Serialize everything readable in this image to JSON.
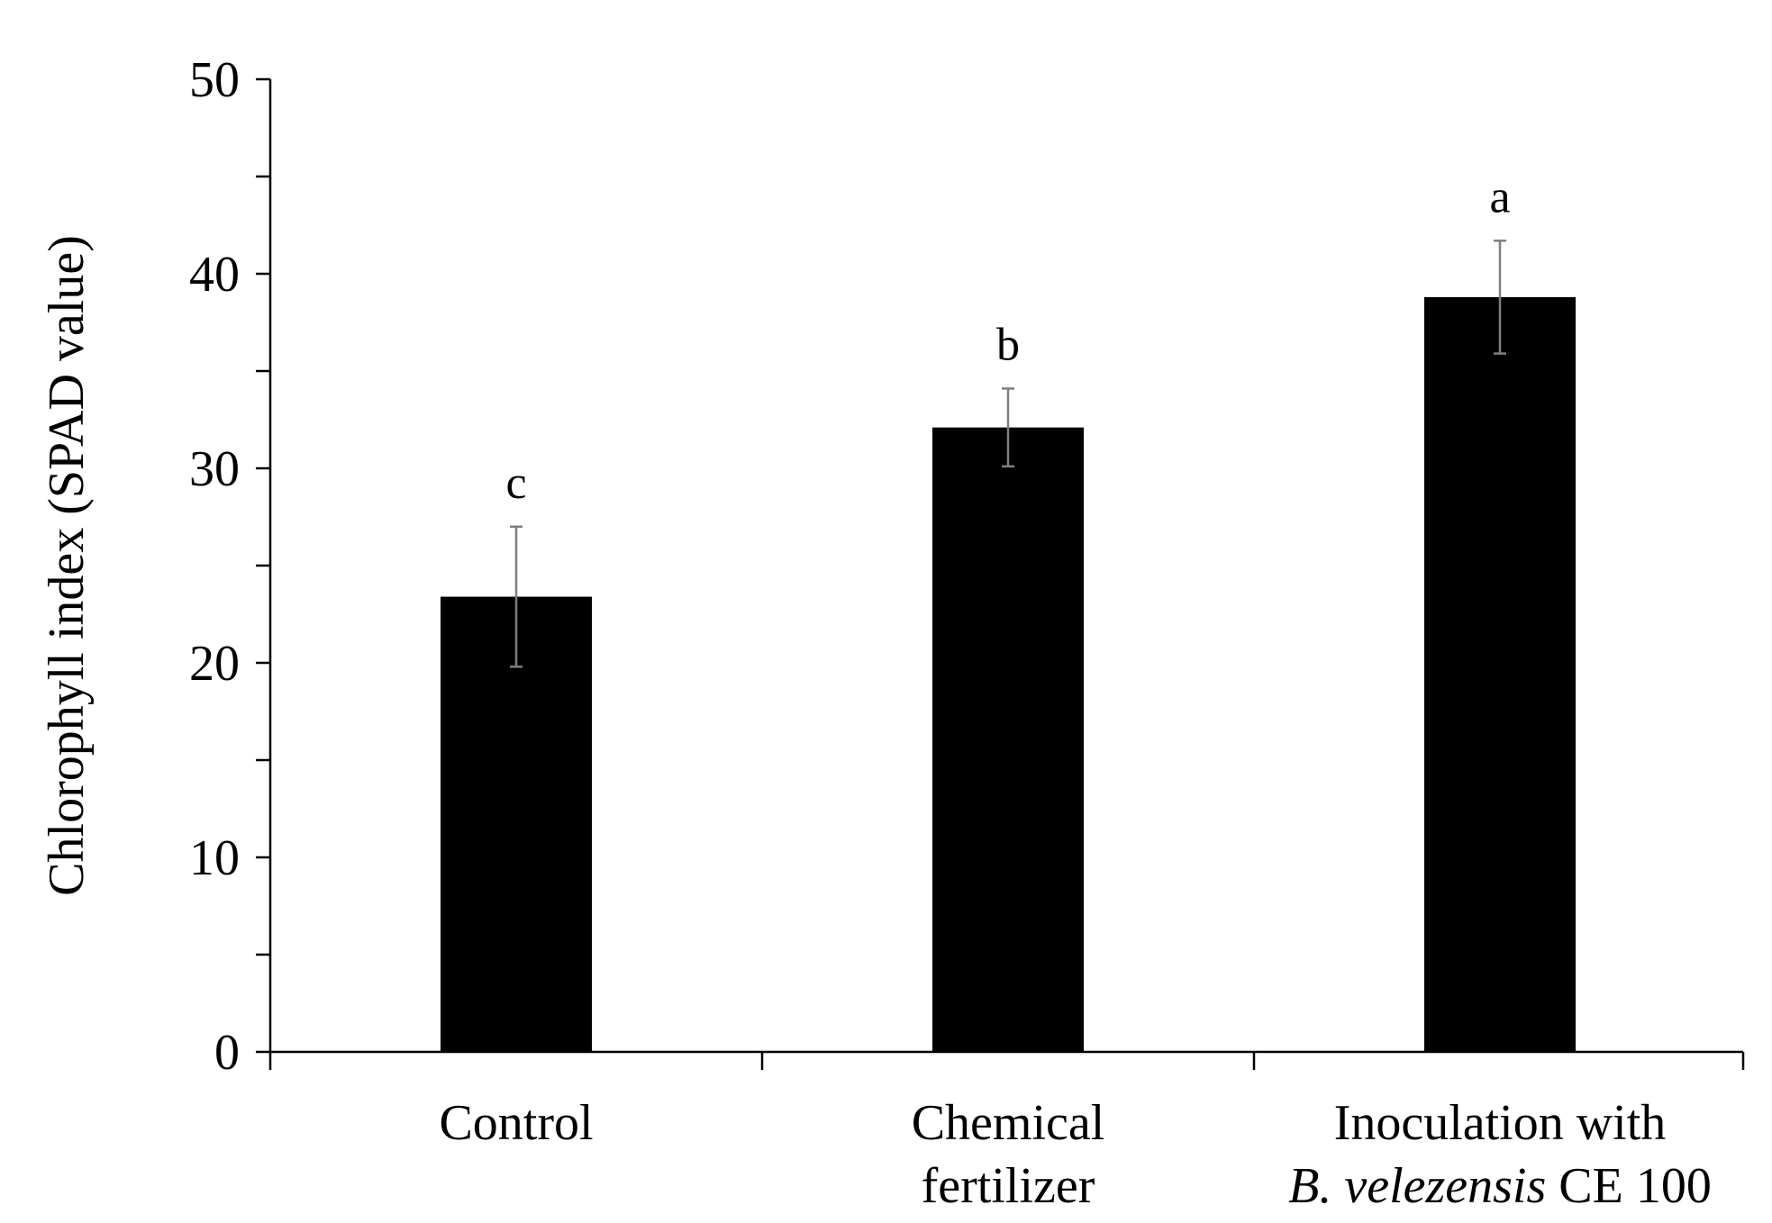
{
  "chart_data": {
    "type": "bar",
    "title": "",
    "xlabel": "",
    "ylabel": "Chlorophyll index (SPAD value)",
    "ylim": [
      0,
      50
    ],
    "yticks": [
      0,
      10,
      20,
      30,
      40,
      50
    ],
    "grid": false,
    "categories": [
      {
        "lines": [
          {
            "parts": [
              {
                "text": "Control",
                "italic": false
              }
            ]
          }
        ]
      },
      {
        "lines": [
          {
            "parts": [
              {
                "text": "Chemical",
                "italic": false
              }
            ]
          },
          {
            "parts": [
              {
                "text": "fertilizer",
                "italic": false
              }
            ]
          }
        ]
      },
      {
        "lines": [
          {
            "parts": [
              {
                "text": "Inoculation with",
                "italic": false
              }
            ]
          },
          {
            "parts": [
              {
                "text": "B. velezensis",
                "italic": true
              },
              {
                "text": " CE 100",
                "italic": false
              }
            ]
          }
        ]
      }
    ],
    "values": [
      23.4,
      32.1,
      38.8
    ],
    "errors": [
      3.6,
      2.0,
      2.9
    ],
    "significance_letters": [
      "c",
      "b",
      "a"
    ],
    "bar_color": "#000000",
    "error_bar_color": "#7f7f7f"
  }
}
